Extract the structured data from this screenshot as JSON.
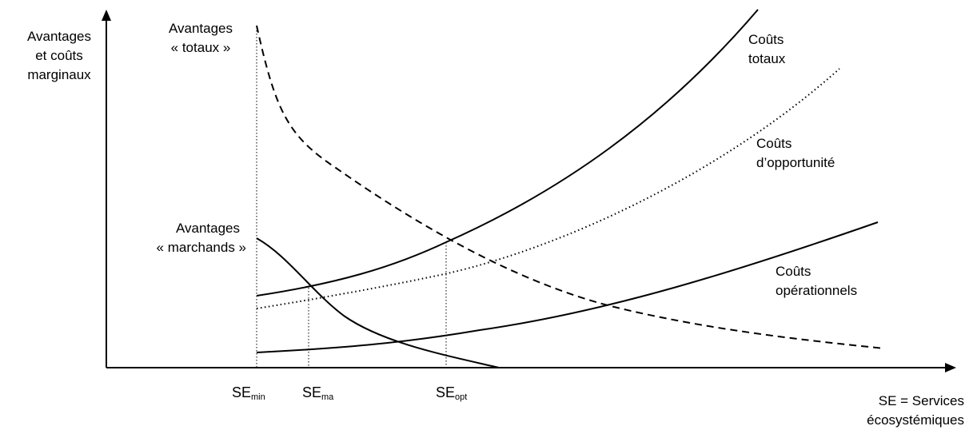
{
  "axes": {
    "y_label": [
      "Avantages",
      "et coûts",
      "marginaux"
    ],
    "x_label": [
      "SE = Services",
      "écosystémiques"
    ]
  },
  "curve_labels": {
    "avantages_totaux": [
      "Avantages",
      "« totaux »"
    ],
    "avantages_marchands": [
      "Avantages",
      "« marchands »"
    ],
    "couts_totaux": [
      "Coûts",
      "totaux"
    ],
    "couts_opportunite": [
      "Coûts",
      "d’opportunité"
    ],
    "couts_operationnels": [
      "Coûts",
      "opérationnels"
    ]
  },
  "x_markers": [
    {
      "base": "SE",
      "sub": "min"
    },
    {
      "base": "SE",
      "sub": "ma"
    },
    {
      "base": "SE",
      "sub": "opt"
    }
  ],
  "line_styles": {
    "avantages_totaux": "dashed",
    "avantages_marchands": "solid",
    "couts_totaux": "solid",
    "couts_opportunite": "dotted",
    "couts_operationnels": "solid"
  },
  "colors": {
    "ink": "#000000",
    "background": "#ffffff"
  }
}
